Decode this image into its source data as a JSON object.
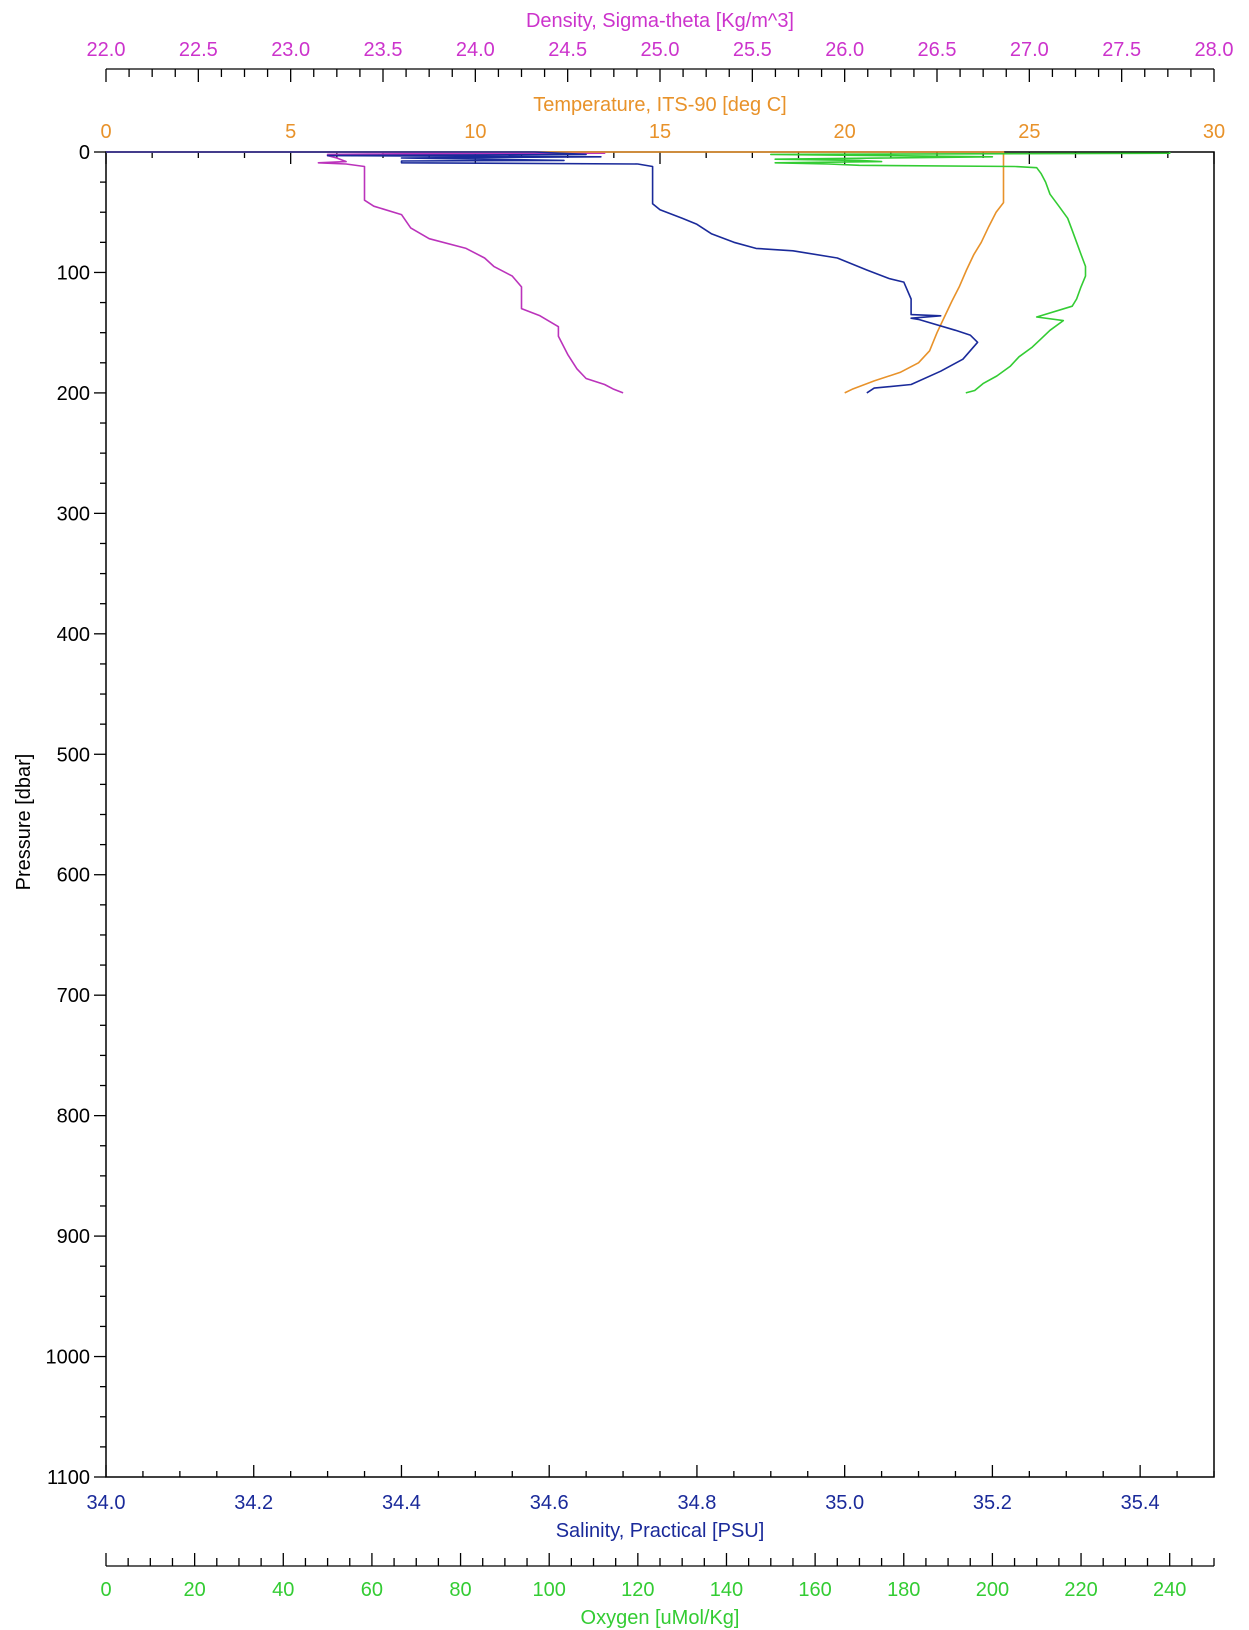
{
  "chart_data": {
    "type": "line",
    "title": "",
    "grid": false,
    "legend": "none",
    "y_axis": {
      "label": "Pressure [dbar]",
      "range": [
        0,
        1100
      ],
      "inverted": true,
      "ticks": [
        "0",
        "100",
        "200",
        "300",
        "400",
        "500",
        "600",
        "700",
        "800",
        "900",
        "1000",
        "1100"
      ],
      "color": "#000000"
    },
    "x_axes": [
      {
        "id": "density",
        "label": "Density, Sigma-theta [Kg/m^3]",
        "position": "top-outer",
        "range": [
          22.0,
          28.0
        ],
        "ticks": [
          "22.0",
          "22.5",
          "23.0",
          "23.5",
          "24.0",
          "24.5",
          "25.0",
          "25.5",
          "26.0",
          "26.5",
          "27.0",
          "27.5",
          "28.0"
        ],
        "color": "#cc33cc"
      },
      {
        "id": "temperature",
        "label": "Temperature, ITS-90 [deg C]",
        "position": "top-frame",
        "range": [
          0,
          30
        ],
        "ticks": [
          "0",
          "5",
          "10",
          "15",
          "20",
          "25",
          "30"
        ],
        "color": "#e8922a"
      },
      {
        "id": "salinity",
        "label": "Salinity, Practical [PSU]",
        "position": "bottom-frame",
        "range": [
          34.0,
          35.5
        ],
        "ticks": [
          "34.0",
          "34.2",
          "34.4",
          "34.6",
          "34.8",
          "35.0",
          "35.2",
          "35.4"
        ],
        "color": "#1a2a9a"
      },
      {
        "id": "oxygen",
        "label": "Oxygen [uMol/Kg]",
        "position": "bottom-outer",
        "range": [
          0,
          250
        ],
        "ticks": [
          "0",
          "20",
          "40",
          "60",
          "80",
          "100",
          "120",
          "140",
          "160",
          "180",
          "200",
          "220",
          "240"
        ],
        "color": "#33cc33"
      }
    ],
    "series": [
      {
        "axis": "density",
        "color": "#bb33bb",
        "points": [
          [
            22.0,
            0
          ],
          [
            23.2,
            0
          ],
          [
            24.7,
            1
          ],
          [
            23.6,
            1.5
          ],
          [
            23.2,
            2
          ],
          [
            23.2,
            3
          ],
          [
            23.25,
            5
          ],
          [
            23.3,
            8
          ],
          [
            23.15,
            9
          ],
          [
            23.3,
            10
          ],
          [
            23.4,
            12
          ],
          [
            23.4,
            40
          ],
          [
            23.45,
            45
          ],
          [
            23.6,
            52
          ],
          [
            23.65,
            63
          ],
          [
            23.75,
            72
          ],
          [
            23.95,
            80
          ],
          [
            24.05,
            88
          ],
          [
            24.1,
            95
          ],
          [
            24.2,
            103
          ],
          [
            24.25,
            112
          ],
          [
            24.25,
            130
          ],
          [
            24.35,
            136
          ],
          [
            24.45,
            145
          ],
          [
            24.45,
            153
          ],
          [
            24.5,
            168
          ],
          [
            24.55,
            180
          ],
          [
            24.6,
            188
          ],
          [
            24.7,
            193
          ],
          [
            24.75,
            197
          ],
          [
            24.8,
            200
          ]
        ]
      },
      {
        "axis": "temperature",
        "color": "#e8922a",
        "points": [
          [
            0,
            0
          ],
          [
            24.3,
            0
          ],
          [
            24.3,
            5
          ],
          [
            24.3,
            42
          ],
          [
            24.1,
            50
          ],
          [
            23.9,
            62
          ],
          [
            23.7,
            75
          ],
          [
            23.5,
            85
          ],
          [
            23.3,
            98
          ],
          [
            23.1,
            112
          ],
          [
            22.9,
            124
          ],
          [
            22.7,
            137
          ],
          [
            22.5,
            150
          ],
          [
            22.3,
            165
          ],
          [
            22.0,
            175
          ],
          [
            21.5,
            183
          ],
          [
            20.8,
            190
          ],
          [
            20.2,
            197
          ],
          [
            20.0,
            200
          ]
        ]
      },
      {
        "axis": "salinity",
        "color": "#1a2a9a",
        "points": [
          [
            34.0,
            0
          ],
          [
            34.58,
            0
          ],
          [
            34.65,
            2
          ],
          [
            34.3,
            3
          ],
          [
            34.67,
            4
          ],
          [
            34.4,
            5
          ],
          [
            34.62,
            7
          ],
          [
            34.4,
            7.5
          ],
          [
            34.4,
            9
          ],
          [
            34.72,
            10
          ],
          [
            34.74,
            12
          ],
          [
            34.74,
            43
          ],
          [
            34.75,
            48
          ],
          [
            34.78,
            55
          ],
          [
            34.8,
            60
          ],
          [
            34.82,
            68
          ],
          [
            34.85,
            75
          ],
          [
            34.88,
            80
          ],
          [
            34.93,
            82
          ],
          [
            34.99,
            88
          ],
          [
            35.03,
            98
          ],
          [
            35.06,
            105
          ],
          [
            35.08,
            108
          ],
          [
            35.09,
            122
          ],
          [
            35.09,
            135
          ],
          [
            35.13,
            136
          ],
          [
            35.09,
            138
          ],
          [
            35.1,
            139
          ],
          [
            35.15,
            148
          ],
          [
            35.17,
            152
          ],
          [
            35.18,
            158
          ],
          [
            35.17,
            165
          ],
          [
            35.16,
            172
          ],
          [
            35.13,
            182
          ],
          [
            35.09,
            193
          ],
          [
            35.04,
            196
          ],
          [
            35.03,
            200
          ]
        ]
      },
      {
        "axis": "oxygen",
        "color": "#33cc33",
        "points": [
          [
            240,
            0
          ],
          [
            240,
            1
          ],
          [
            150,
            2
          ],
          [
            200,
            4
          ],
          [
            151,
            6
          ],
          [
            170,
            7
          ],
          [
            175,
            8
          ],
          [
            151,
            9
          ],
          [
            163,
            10
          ],
          [
            170,
            11
          ],
          [
            205,
            12
          ],
          [
            210,
            13
          ],
          [
            211,
            18
          ],
          [
            212,
            25
          ],
          [
            213,
            35
          ],
          [
            215,
            45
          ],
          [
            217,
            55
          ],
          [
            218,
            65
          ],
          [
            219,
            75
          ],
          [
            220,
            85
          ],
          [
            221,
            95
          ],
          [
            221,
            103
          ],
          [
            220,
            112
          ],
          [
            219,
            122
          ],
          [
            218,
            128
          ],
          [
            210,
            137
          ],
          [
            216,
            140
          ],
          [
            213,
            148
          ],
          [
            211,
            155
          ],
          [
            209,
            162
          ],
          [
            206,
            170
          ],
          [
            204,
            178
          ],
          [
            201,
            186
          ],
          [
            198,
            192
          ],
          [
            196,
            198
          ],
          [
            194,
            200
          ]
        ]
      }
    ]
  }
}
